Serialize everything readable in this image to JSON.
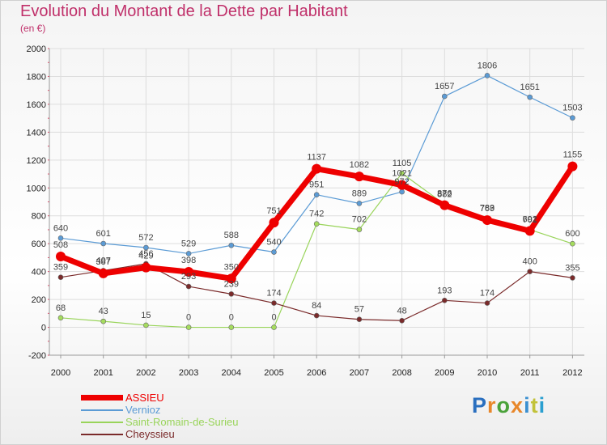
{
  "title": "Evolution du Montant de la Dette par Habitant",
  "subtitle": "(en €)",
  "logo": {
    "letters": [
      "P",
      "r",
      "o",
      "x",
      "i",
      "t",
      "i"
    ],
    "colors": [
      "#2a6fbf",
      "#e8872a",
      "#4aa23a",
      "#e8872a",
      "#3a8fd0",
      "#c2c23a",
      "#2a9fd0"
    ]
  },
  "chart_data": {
    "type": "line",
    "title": "Evolution du Montant de la Dette par Habitant",
    "subtitle": "(en €)",
    "xlabel": "",
    "ylabel": "",
    "x": [
      "2000",
      "2001",
      "2002",
      "2003",
      "2004",
      "2005",
      "2006",
      "2007",
      "2008",
      "2009",
      "2010",
      "2011",
      "2012"
    ],
    "ylim": [
      -200,
      2000
    ],
    "yticks": [
      "-200",
      "0",
      "200",
      "400",
      "600",
      "800",
      "1000",
      "1200",
      "1400",
      "1600",
      "1800",
      "2000"
    ],
    "grid": true,
    "legend_position": "bottom-left",
    "series": [
      {
        "name": "ASSIEU",
        "color": "#ee0000",
        "values": [
          508,
          387,
          429,
          398,
          350,
          751,
          1137,
          1082,
          1021,
          876,
          769,
          692,
          1155
        ],
        "labels": [
          "508",
          "387",
          "429",
          "398",
          "350",
          "751",
          "1137",
          "1082",
          "1021",
          "876",
          "769",
          "692",
          "1155"
        ]
      },
      {
        "name": "Vernioz",
        "color": "#5b9bd5",
        "values": [
          640,
          601,
          572,
          529,
          588,
          540,
          951,
          889,
          972,
          1657,
          1806,
          1651,
          1503
        ],
        "labels": [
          "640",
          "601",
          "572",
          "529",
          "588",
          "540",
          "951",
          "889",
          "972",
          "1657",
          "1806",
          "1651",
          "1503"
        ]
      },
      {
        "name": "Saint-Romain-de-Surieu",
        "color": "#99d45a",
        "values": [
          68,
          43,
          15,
          0,
          0,
          0,
          742,
          702,
          1105,
          882,
          783,
          701,
          600
        ],
        "labels": [
          "68",
          "43",
          "15",
          "0",
          "0",
          "0",
          "742",
          "702",
          "1105",
          "882",
          "783",
          "701",
          "600"
        ]
      },
      {
        "name": "Cheyssieu",
        "color": "#7a2a2a",
        "values": [
          359,
          407,
          456,
          293,
          239,
          174,
          84,
          57,
          48,
          193,
          174,
          400,
          355
        ],
        "labels": [
          "359",
          "407",
          "456",
          "293",
          "239",
          "174",
          "84",
          "57",
          "48",
          "193",
          "174",
          "400",
          "355"
        ]
      }
    ]
  }
}
